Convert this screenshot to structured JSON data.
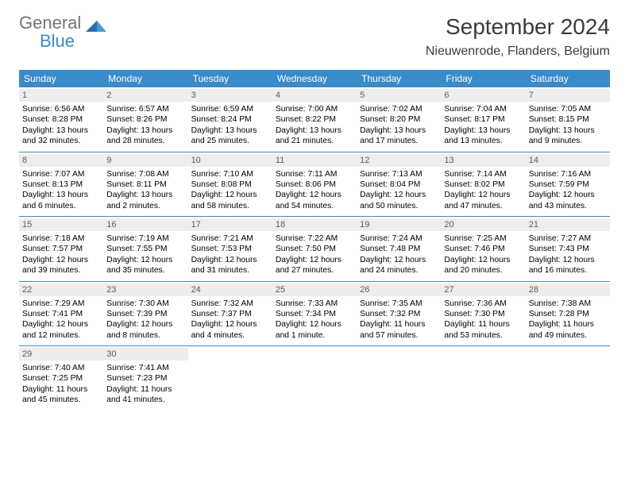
{
  "logo": {
    "text_gray": "General",
    "text_blue": "Blue"
  },
  "title": {
    "month": "September 2024",
    "location": "Nieuwenrode, Flanders, Belgium"
  },
  "colors": {
    "header_bg": "#3a8bc9",
    "daynum_bg": "#ededed",
    "daynum_fg": "#5c5c5c",
    "rule": "#3a8bc9",
    "logo_gray": "#6f7378",
    "logo_blue": "#3a8bc9",
    "title_fg": "#3b3b3b"
  },
  "weekdays": [
    "Sunday",
    "Monday",
    "Tuesday",
    "Wednesday",
    "Thursday",
    "Friday",
    "Saturday"
  ],
  "weeks": [
    [
      {
        "n": "1",
        "sr": "Sunrise: 6:56 AM",
        "ss": "Sunset: 8:28 PM",
        "d1": "Daylight: 13 hours",
        "d2": "and 32 minutes."
      },
      {
        "n": "2",
        "sr": "Sunrise: 6:57 AM",
        "ss": "Sunset: 8:26 PM",
        "d1": "Daylight: 13 hours",
        "d2": "and 28 minutes."
      },
      {
        "n": "3",
        "sr": "Sunrise: 6:59 AM",
        "ss": "Sunset: 8:24 PM",
        "d1": "Daylight: 13 hours",
        "d2": "and 25 minutes."
      },
      {
        "n": "4",
        "sr": "Sunrise: 7:00 AM",
        "ss": "Sunset: 8:22 PM",
        "d1": "Daylight: 13 hours",
        "d2": "and 21 minutes."
      },
      {
        "n": "5",
        "sr": "Sunrise: 7:02 AM",
        "ss": "Sunset: 8:20 PM",
        "d1": "Daylight: 13 hours",
        "d2": "and 17 minutes."
      },
      {
        "n": "6",
        "sr": "Sunrise: 7:04 AM",
        "ss": "Sunset: 8:17 PM",
        "d1": "Daylight: 13 hours",
        "d2": "and 13 minutes."
      },
      {
        "n": "7",
        "sr": "Sunrise: 7:05 AM",
        "ss": "Sunset: 8:15 PM",
        "d1": "Daylight: 13 hours",
        "d2": "and 9 minutes."
      }
    ],
    [
      {
        "n": "8",
        "sr": "Sunrise: 7:07 AM",
        "ss": "Sunset: 8:13 PM",
        "d1": "Daylight: 13 hours",
        "d2": "and 6 minutes."
      },
      {
        "n": "9",
        "sr": "Sunrise: 7:08 AM",
        "ss": "Sunset: 8:11 PM",
        "d1": "Daylight: 13 hours",
        "d2": "and 2 minutes."
      },
      {
        "n": "10",
        "sr": "Sunrise: 7:10 AM",
        "ss": "Sunset: 8:08 PM",
        "d1": "Daylight: 12 hours",
        "d2": "and 58 minutes."
      },
      {
        "n": "11",
        "sr": "Sunrise: 7:11 AM",
        "ss": "Sunset: 8:06 PM",
        "d1": "Daylight: 12 hours",
        "d2": "and 54 minutes."
      },
      {
        "n": "12",
        "sr": "Sunrise: 7:13 AM",
        "ss": "Sunset: 8:04 PM",
        "d1": "Daylight: 12 hours",
        "d2": "and 50 minutes."
      },
      {
        "n": "13",
        "sr": "Sunrise: 7:14 AM",
        "ss": "Sunset: 8:02 PM",
        "d1": "Daylight: 12 hours",
        "d2": "and 47 minutes."
      },
      {
        "n": "14",
        "sr": "Sunrise: 7:16 AM",
        "ss": "Sunset: 7:59 PM",
        "d1": "Daylight: 12 hours",
        "d2": "and 43 minutes."
      }
    ],
    [
      {
        "n": "15",
        "sr": "Sunrise: 7:18 AM",
        "ss": "Sunset: 7:57 PM",
        "d1": "Daylight: 12 hours",
        "d2": "and 39 minutes."
      },
      {
        "n": "16",
        "sr": "Sunrise: 7:19 AM",
        "ss": "Sunset: 7:55 PM",
        "d1": "Daylight: 12 hours",
        "d2": "and 35 minutes."
      },
      {
        "n": "17",
        "sr": "Sunrise: 7:21 AM",
        "ss": "Sunset: 7:53 PM",
        "d1": "Daylight: 12 hours",
        "d2": "and 31 minutes."
      },
      {
        "n": "18",
        "sr": "Sunrise: 7:22 AM",
        "ss": "Sunset: 7:50 PM",
        "d1": "Daylight: 12 hours",
        "d2": "and 27 minutes."
      },
      {
        "n": "19",
        "sr": "Sunrise: 7:24 AM",
        "ss": "Sunset: 7:48 PM",
        "d1": "Daylight: 12 hours",
        "d2": "and 24 minutes."
      },
      {
        "n": "20",
        "sr": "Sunrise: 7:25 AM",
        "ss": "Sunset: 7:46 PM",
        "d1": "Daylight: 12 hours",
        "d2": "and 20 minutes."
      },
      {
        "n": "21",
        "sr": "Sunrise: 7:27 AM",
        "ss": "Sunset: 7:43 PM",
        "d1": "Daylight: 12 hours",
        "d2": "and 16 minutes."
      }
    ],
    [
      {
        "n": "22",
        "sr": "Sunrise: 7:29 AM",
        "ss": "Sunset: 7:41 PM",
        "d1": "Daylight: 12 hours",
        "d2": "and 12 minutes."
      },
      {
        "n": "23",
        "sr": "Sunrise: 7:30 AM",
        "ss": "Sunset: 7:39 PM",
        "d1": "Daylight: 12 hours",
        "d2": "and 8 minutes."
      },
      {
        "n": "24",
        "sr": "Sunrise: 7:32 AM",
        "ss": "Sunset: 7:37 PM",
        "d1": "Daylight: 12 hours",
        "d2": "and 4 minutes."
      },
      {
        "n": "25",
        "sr": "Sunrise: 7:33 AM",
        "ss": "Sunset: 7:34 PM",
        "d1": "Daylight: 12 hours",
        "d2": "and 1 minute."
      },
      {
        "n": "26",
        "sr": "Sunrise: 7:35 AM",
        "ss": "Sunset: 7:32 PM",
        "d1": "Daylight: 11 hours",
        "d2": "and 57 minutes."
      },
      {
        "n": "27",
        "sr": "Sunrise: 7:36 AM",
        "ss": "Sunset: 7:30 PM",
        "d1": "Daylight: 11 hours",
        "d2": "and 53 minutes."
      },
      {
        "n": "28",
        "sr": "Sunrise: 7:38 AM",
        "ss": "Sunset: 7:28 PM",
        "d1": "Daylight: 11 hours",
        "d2": "and 49 minutes."
      }
    ],
    [
      {
        "n": "29",
        "sr": "Sunrise: 7:40 AM",
        "ss": "Sunset: 7:25 PM",
        "d1": "Daylight: 11 hours",
        "d2": "and 45 minutes."
      },
      {
        "n": "30",
        "sr": "Sunrise: 7:41 AM",
        "ss": "Sunset: 7:23 PM",
        "d1": "Daylight: 11 hours",
        "d2": "and 41 minutes."
      },
      null,
      null,
      null,
      null,
      null
    ]
  ]
}
